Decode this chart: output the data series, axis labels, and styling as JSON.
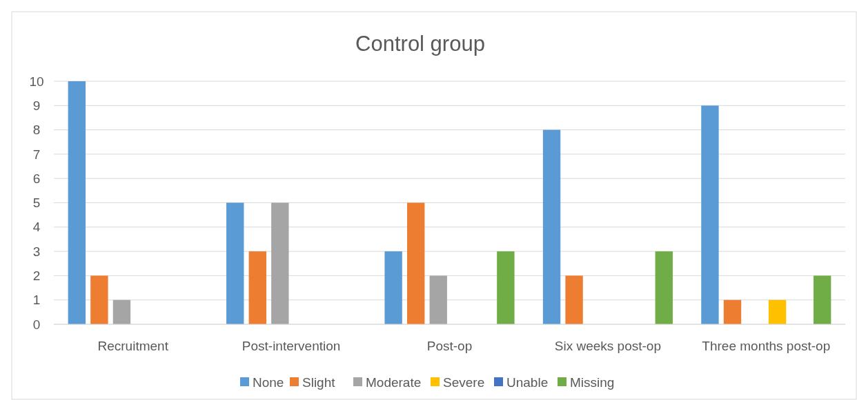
{
  "chart_data": {
    "type": "bar",
    "title": "Control group",
    "categories": [
      "Recruitment",
      "Post-intervention",
      "Post-op",
      "Six weeks post-op",
      "Three months post-op"
    ],
    "series": [
      {
        "name": "None",
        "color": "#5b9bd5",
        "values": [
          10,
          5,
          3,
          8,
          9
        ]
      },
      {
        "name": "Slight",
        "color": "#ed7d31",
        "values": [
          2,
          3,
          5,
          2,
          1
        ]
      },
      {
        "name": "Moderate",
        "color": "#a5a5a5",
        "values": [
          1,
          5,
          2,
          0,
          0
        ]
      },
      {
        "name": "Severe",
        "color": "#ffc000",
        "values": [
          0,
          0,
          0,
          0,
          1
        ]
      },
      {
        "name": "Unable",
        "color": "#4472c4",
        "values": [
          0,
          0,
          0,
          0,
          0
        ]
      },
      {
        "name": "Missing",
        "color": "#70ad47",
        "values": [
          0,
          0,
          3,
          3,
          2
        ]
      }
    ],
    "ylim": [
      0,
      10
    ],
    "yticks": [
      0,
      1,
      2,
      3,
      4,
      5,
      6,
      7,
      8,
      9,
      10
    ],
    "grid": "y",
    "legend": "bottom"
  }
}
